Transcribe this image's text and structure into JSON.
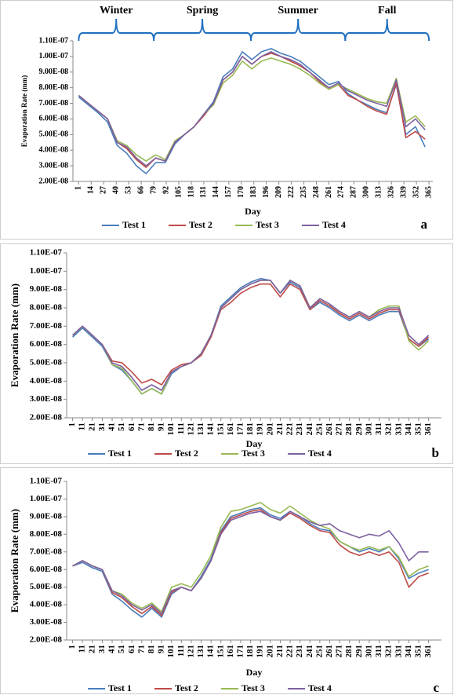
{
  "chart_data": [
    {
      "type": "line",
      "y_label": "Evaporation Rate (mm)",
      "x_label": "Day",
      "panel_label": "a",
      "seasons": [
        {
          "label": "Winter",
          "start": 1,
          "end": 79
        },
        {
          "label": "Spring",
          "start": 79,
          "end": 180
        },
        {
          "label": "Summer",
          "start": 180,
          "end": 278
        },
        {
          "label": "Fall",
          "start": 278,
          "end": 365
        }
      ],
      "x": [
        1,
        11,
        21,
        31,
        41,
        51,
        61,
        71,
        81,
        91,
        101,
        111,
        121,
        131,
        141,
        151,
        161,
        171,
        181,
        191,
        201,
        211,
        221,
        231,
        241,
        251,
        261,
        271,
        281,
        291,
        301,
        311,
        321,
        331,
        341,
        351,
        361
      ],
      "xlim": [
        -5,
        369
      ],
      "xticks": [
        1,
        14,
        27,
        40,
        53,
        66,
        79,
        92,
        105,
        118,
        131,
        144,
        157,
        170,
        183,
        196,
        209,
        222,
        235,
        248,
        261,
        274,
        287,
        300,
        313,
        326,
        339,
        352,
        365
      ],
      "ylim": [
        2e-08,
        1.1e-07
      ],
      "yticks": [
        {
          "value": 2e-08,
          "label": "2.00E-08"
        },
        {
          "value": 3e-08,
          "label": "3.00E-08"
        },
        {
          "value": 4e-08,
          "label": "4.00E-08"
        },
        {
          "value": 5e-08,
          "label": "5.00E-08"
        },
        {
          "value": 6e-08,
          "label": "6.00E-08"
        },
        {
          "value": 7e-08,
          "label": "7.00E-08"
        },
        {
          "value": 8e-08,
          "label": "8.00E-08"
        },
        {
          "value": 9e-08,
          "label": "9.00E-08"
        },
        {
          "value": 1e-07,
          "label": "1.00E-07"
        },
        {
          "value": 1.1e-07,
          "label": "1.10E-07"
        }
      ],
      "series": [
        {
          "name": "Test 1",
          "color": "#4a7ebb",
          "values": [
            7.4e-08,
            6.9e-08,
            6.4e-08,
            5.8e-08,
            4.3e-08,
            3.8e-08,
            3e-08,
            2.5e-08,
            3.2e-08,
            3.2e-08,
            4.4e-08,
            5e-08,
            5.5e-08,
            6.3e-08,
            7.1e-08,
            8.7e-08,
            9.2e-08,
            1.03e-07,
            9.8e-08,
            1.03e-07,
            1.05e-07,
            1.02e-07,
            1e-07,
            9.7e-08,
            9.2e-08,
            8.7e-08,
            8.2e-08,
            8.4e-08,
            7.6e-08,
            7.2e-08,
            6.9e-08,
            6.6e-08,
            6.4e-08,
            8.2e-08,
            5e-08,
            5.5e-08,
            4.2e-08
          ]
        },
        {
          "name": "Test 2",
          "color": "#be4b48",
          "values": [
            7.5e-08,
            7e-08,
            6.5e-08,
            6e-08,
            4.5e-08,
            4.1e-08,
            3.4e-08,
            2.9e-08,
            3.5e-08,
            3.3e-08,
            4.5e-08,
            5e-08,
            5.5e-08,
            6.2e-08,
            7e-08,
            8.5e-08,
            9e-08,
            1e-07,
            9.5e-08,
            1e-07,
            1.02e-07,
            1e-07,
            9.7e-08,
            9.4e-08,
            9e-08,
            8.4e-08,
            7.9e-08,
            8.2e-08,
            7.5e-08,
            7.2e-08,
            6.8e-08,
            6.5e-08,
            6.3e-08,
            8.3e-08,
            4.8e-08,
            5.2e-08,
            4.7e-08
          ]
        },
        {
          "name": "Test 3",
          "color": "#98b954",
          "values": [
            7.5e-08,
            7e-08,
            6.5e-08,
            6e-08,
            4.6e-08,
            4.3e-08,
            3.7e-08,
            3.3e-08,
            3.7e-08,
            3.4e-08,
            4.6e-08,
            5e-08,
            5.5e-08,
            6.3e-08,
            6.9e-08,
            8.3e-08,
            8.8e-08,
            9.7e-08,
            9.2e-08,
            9.7e-08,
            9.9e-08,
            9.7e-08,
            9.5e-08,
            9.2e-08,
            8.8e-08,
            8.3e-08,
            7.9e-08,
            8.2e-08,
            7.9e-08,
            7.6e-08,
            7.3e-08,
            7.1e-08,
            7e-08,
            8.6e-08,
            5.8e-08,
            6.2e-08,
            5.5e-08
          ]
        },
        {
          "name": "Test 4",
          "color": "#7d60a0",
          "values": [
            7.5e-08,
            7e-08,
            6.5e-08,
            6e-08,
            4.5e-08,
            4.2e-08,
            3.5e-08,
            3e-08,
            3.5e-08,
            3.3e-08,
            4.5e-08,
            5e-08,
            5.5e-08,
            6.3e-08,
            7e-08,
            8.5e-08,
            9e-08,
            1e-07,
            9.5e-08,
            1e-07,
            1.03e-07,
            1e-07,
            9.8e-08,
            9.5e-08,
            9e-08,
            8.5e-08,
            8e-08,
            8.3e-08,
            7.8e-08,
            7.5e-08,
            7.2e-08,
            7e-08,
            6.8e-08,
            8.5e-08,
            5.5e-08,
            6e-08,
            5.3e-08
          ]
        }
      ]
    },
    {
      "type": "line",
      "y_label": "Evaporation Rate (mm)",
      "x_label": "Day",
      "panel_label": "b",
      "x": [
        1,
        11,
        21,
        31,
        41,
        51,
        61,
        71,
        81,
        91,
        101,
        111,
        121,
        131,
        141,
        151,
        161,
        171,
        181,
        191,
        201,
        211,
        221,
        231,
        241,
        251,
        261,
        271,
        281,
        291,
        301,
        311,
        321,
        331,
        341,
        351,
        361
      ],
      "xlim": [
        -5,
        374
      ],
      "xticks": [
        1,
        11,
        21,
        31,
        41,
        51,
        61,
        71,
        81,
        91,
        101,
        111,
        121,
        131,
        141,
        151,
        161,
        171,
        181,
        191,
        201,
        211,
        221,
        231,
        241,
        251,
        261,
        271,
        281,
        291,
        301,
        311,
        321,
        331,
        341,
        351,
        361
      ],
      "ylim": [
        2e-08,
        1.1e-07
      ],
      "yticks": [
        {
          "value": 2e-08,
          "label": "2.00E-08"
        },
        {
          "value": 3e-08,
          "label": "3.00E-08"
        },
        {
          "value": 4e-08,
          "label": "4.00E-08"
        },
        {
          "value": 5e-08,
          "label": "5.00E-08"
        },
        {
          "value": 6e-08,
          "label": "6.00E-08"
        },
        {
          "value": 7e-08,
          "label": "7.00E-08"
        },
        {
          "value": 8e-08,
          "label": "8.00E-08"
        },
        {
          "value": 9e-08,
          "label": "9.00E-08"
        },
        {
          "value": 1e-07,
          "label": "1.00E-07"
        },
        {
          "value": 1.1e-07,
          "label": "1.10E-07"
        }
      ],
      "series": [
        {
          "name": "Test 1",
          "color": "#4a7ebb",
          "values": [
            6.4e-08,
            6.9e-08,
            6.4e-08,
            5.9e-08,
            4.9e-08,
            4.6e-08,
            4e-08,
            3.3e-08,
            3.6e-08,
            3.3e-08,
            4.4e-08,
            4.8e-08,
            5e-08,
            5.5e-08,
            6.5e-08,
            8.1e-08,
            8.6e-08,
            9.1e-08,
            9.4e-08,
            9.6e-08,
            9.5e-08,
            8.8e-08,
            9.4e-08,
            9.1e-08,
            7.9e-08,
            8.3e-08,
            8e-08,
            7.6e-08,
            7.3e-08,
            7.6e-08,
            7.3e-08,
            7.6e-08,
            7.8e-08,
            7.8e-08,
            6.3e-08,
            5.9e-08,
            6.3e-08
          ]
        },
        {
          "name": "Test 2",
          "color": "#be4b48",
          "values": [
            6.5e-08,
            7e-08,
            6.5e-08,
            6e-08,
            5.1e-08,
            5e-08,
            4.5e-08,
            3.9e-08,
            4.1e-08,
            3.8e-08,
            4.6e-08,
            4.9e-08,
            5e-08,
            5.4e-08,
            6.4e-08,
            7.9e-08,
            8.3e-08,
            8.8e-08,
            9.1e-08,
            9.3e-08,
            9.3e-08,
            8.6e-08,
            9.3e-08,
            9e-08,
            7.9e-08,
            8.4e-08,
            8.1e-08,
            7.7e-08,
            7.4e-08,
            7.7e-08,
            7.4e-08,
            7.7e-08,
            7.9e-08,
            7.9e-08,
            6.3e-08,
            5.9e-08,
            6.4e-08
          ]
        },
        {
          "name": "Test 3",
          "color": "#98b954",
          "values": [
            6.5e-08,
            7e-08,
            6.5e-08,
            6e-08,
            4.9e-08,
            4.7e-08,
            4e-08,
            3.3e-08,
            3.6e-08,
            3.3e-08,
            4.5e-08,
            4.8e-08,
            5e-08,
            5.5e-08,
            6.5e-08,
            8e-08,
            8.5e-08,
            9e-08,
            9.3e-08,
            9.5e-08,
            9.5e-08,
            8.8e-08,
            9.5e-08,
            9.2e-08,
            8e-08,
            8.5e-08,
            8.2e-08,
            7.8e-08,
            7.5e-08,
            7.8e-08,
            7.5e-08,
            7.9e-08,
            8.1e-08,
            8.1e-08,
            6.2e-08,
            5.7e-08,
            6.2e-08
          ]
        },
        {
          "name": "Test 4",
          "color": "#7d60a0",
          "values": [
            6.5e-08,
            7e-08,
            6.5e-08,
            6e-08,
            5e-08,
            4.8e-08,
            4.2e-08,
            3.5e-08,
            3.8e-08,
            3.5e-08,
            4.5e-08,
            4.8e-08,
            5e-08,
            5.5e-08,
            6.5e-08,
            8e-08,
            8.5e-08,
            9e-08,
            9.3e-08,
            9.5e-08,
            9.5e-08,
            8.8e-08,
            9.5e-08,
            9.2e-08,
            8e-08,
            8.5e-08,
            8.2e-08,
            7.8e-08,
            7.5e-08,
            7.8e-08,
            7.5e-08,
            7.8e-08,
            8e-08,
            8e-08,
            6.5e-08,
            6e-08,
            6.5e-08
          ]
        }
      ]
    },
    {
      "type": "line",
      "y_label": "Evaporation Rate (mm)",
      "x_label": "Day",
      "panel_label": "c",
      "x": [
        1,
        11,
        21,
        31,
        41,
        51,
        61,
        71,
        81,
        91,
        101,
        111,
        121,
        131,
        141,
        151,
        161,
        171,
        181,
        191,
        201,
        211,
        221,
        231,
        241,
        251,
        261,
        271,
        281,
        291,
        301,
        311,
        321,
        331,
        341,
        351,
        361
      ],
      "xlim": [
        -5,
        374
      ],
      "xticks": [
        1,
        11,
        21,
        31,
        41,
        51,
        61,
        71,
        81,
        91,
        101,
        111,
        121,
        131,
        141,
        151,
        161,
        171,
        181,
        191,
        201,
        211,
        221,
        231,
        241,
        251,
        261,
        271,
        281,
        291,
        301,
        311,
        321,
        331,
        341,
        351,
        361
      ],
      "ylim": [
        2e-08,
        1.1e-07
      ],
      "yticks": [
        {
          "value": 2e-08,
          "label": "2.00E-08"
        },
        {
          "value": 3e-08,
          "label": "3.00E-08"
        },
        {
          "value": 4e-08,
          "label": "4.00E-08"
        },
        {
          "value": 5e-08,
          "label": "5.00E-08"
        },
        {
          "value": 6e-08,
          "label": "6.00E-08"
        },
        {
          "value": 7e-08,
          "label": "7.00E-08"
        },
        {
          "value": 8e-08,
          "label": "8.00E-08"
        },
        {
          "value": 9e-08,
          "label": "9.00E-08"
        },
        {
          "value": 1e-07,
          "label": "1.00E-07"
        },
        {
          "value": 1.1e-07,
          "label": "1.10E-07"
        }
      ],
      "series": [
        {
          "name": "Test 1",
          "color": "#4a7ebb",
          "values": [
            6.2e-08,
            6.4e-08,
            6.1e-08,
            5.9e-08,
            4.6e-08,
            4.2e-08,
            3.7e-08,
            3.3e-08,
            3.8e-08,
            3.3e-08,
            4.6e-08,
            5e-08,
            4.8e-08,
            5.6e-08,
            6.6e-08,
            8.2e-08,
            9e-08,
            9.2e-08,
            9.4e-08,
            9.5e-08,
            9.1e-08,
            8.9e-08,
            9.3e-08,
            9e-08,
            8.6e-08,
            8.3e-08,
            8.2e-08,
            7.6e-08,
            7.3e-08,
            7e-08,
            7.2e-08,
            7e-08,
            7.3e-08,
            6.6e-08,
            5.5e-08,
            5.8e-08,
            6e-08
          ]
        },
        {
          "name": "Test 2",
          "color": "#be4b48",
          "values": [
            6.2e-08,
            6.5e-08,
            6.2e-08,
            6e-08,
            4.7e-08,
            4.4e-08,
            3.9e-08,
            3.5e-08,
            3.9e-08,
            3.4e-08,
            4.7e-08,
            5e-08,
            4.8e-08,
            5.5e-08,
            6.5e-08,
            8.1e-08,
            8.9e-08,
            9.1e-08,
            9.3e-08,
            9.4e-08,
            9e-08,
            8.8e-08,
            9.2e-08,
            8.9e-08,
            8.5e-08,
            8.2e-08,
            8.1e-08,
            7.4e-08,
            7e-08,
            6.8e-08,
            7e-08,
            6.8e-08,
            7e-08,
            6.4e-08,
            5e-08,
            5.6e-08,
            5.8e-08
          ]
        },
        {
          "name": "Test 3",
          "color": "#98b954",
          "values": [
            6.2e-08,
            6.5e-08,
            6.2e-08,
            6e-08,
            4.8e-08,
            4.6e-08,
            4.1e-08,
            3.8e-08,
            4.1e-08,
            3.6e-08,
            5e-08,
            5.2e-08,
            5e-08,
            5.8e-08,
            6.8e-08,
            8.4e-08,
            9.3e-08,
            9.4e-08,
            9.6e-08,
            9.8e-08,
            9.4e-08,
            9.2e-08,
            9.6e-08,
            9.2e-08,
            8.8e-08,
            8.5e-08,
            8.3e-08,
            7.6e-08,
            7.3e-08,
            7.1e-08,
            7.3e-08,
            7.1e-08,
            7.3e-08,
            6.7e-08,
            5.6e-08,
            6e-08,
            6.2e-08
          ]
        },
        {
          "name": "Test 4",
          "color": "#7d60a0",
          "values": [
            6.2e-08,
            6.5e-08,
            6.2e-08,
            6e-08,
            4.8e-08,
            4.5e-08,
            4e-08,
            3.7e-08,
            4e-08,
            3.5e-08,
            4.8e-08,
            5e-08,
            4.8e-08,
            5.5e-08,
            6.5e-08,
            8e-08,
            8.8e-08,
            9e-08,
            9.2e-08,
            9.3e-08,
            9e-08,
            8.8e-08,
            9.3e-08,
            9e-08,
            8.7e-08,
            8.5e-08,
            8.6e-08,
            8.2e-08,
            8e-08,
            7.8e-08,
            8e-08,
            7.9e-08,
            8.2e-08,
            7.5e-08,
            6.5e-08,
            7e-08,
            7e-08
          ]
        }
      ]
    }
  ]
}
